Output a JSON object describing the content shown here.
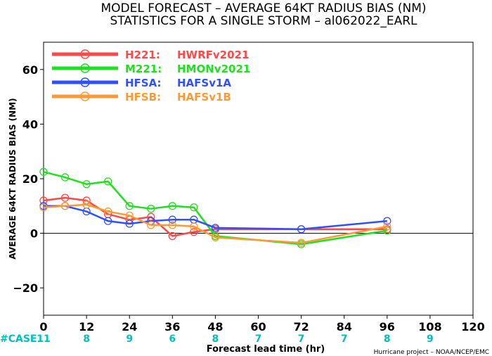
{
  "chart_data": {
    "type": "line",
    "title_line1": "MODEL FORECAST – AVERAGE 64KT RADIUS BIAS (NM)",
    "title_line2": "STATISTICS FOR A SINGLE STORM – al062022_EARL",
    "xlabel": "Forecast lead time (hr)",
    "ylabel": "AVERAGE 64KT RADIUS BIAS (NM)",
    "xlim": [
      0,
      120
    ],
    "ylim": [
      -30,
      70
    ],
    "xticks": [
      0,
      12,
      24,
      36,
      48,
      60,
      72,
      84,
      96,
      108,
      120
    ],
    "yticks": [
      -20,
      0,
      20,
      40,
      60
    ],
    "ytick_labels": [
      "−20",
      "0",
      "20",
      "40",
      "60"
    ],
    "legend_position": "top-left",
    "case_label": "#CASE",
    "case_x": [
      0,
      12,
      24,
      36,
      48,
      60,
      72,
      84,
      96,
      108
    ],
    "case_counts": [
      "11",
      "8",
      "9",
      "6",
      "8",
      "7",
      "7",
      "7",
      "8",
      "9"
    ],
    "credit": "Hurricane project – NOAA/NCEP/EMC",
    "series": [
      {
        "name": "H221:",
        "label": "HWRFv2021",
        "color": "#ff4848",
        "x": [
          0,
          6,
          12,
          18,
          24,
          30,
          36,
          42,
          48,
          72,
          96
        ],
        "y": [
          12,
          13,
          12,
          7,
          5,
          6,
          -1,
          0.5,
          1.5,
          1.5,
          1.5
        ]
      },
      {
        "name": "M221:",
        "label": "HMONv2021",
        "color": "#1ee01e",
        "x": [
          0,
          6,
          12,
          18,
          24,
          30,
          36,
          42,
          48,
          72,
          96
        ],
        "y": [
          22.5,
          20.5,
          18,
          19,
          10,
          9,
          10,
          9.5,
          -1,
          -4,
          1
        ]
      },
      {
        "name": "HFSA:",
        "label": "HAFSv1A",
        "color": "#3050ff",
        "x": [
          0,
          6,
          12,
          18,
          24,
          30,
          36,
          42,
          48,
          72,
          96
        ],
        "y": [
          10,
          10,
          8,
          4.5,
          3.5,
          4.5,
          5,
          5,
          2,
          1.5,
          4.5
        ]
      },
      {
        "name": "HFSB:",
        "label": "HAFSv1B",
        "color": "#ff9933",
        "x": [
          0,
          6,
          12,
          18,
          24,
          30,
          36,
          42,
          48,
          72,
          96
        ],
        "y": [
          9.5,
          10,
          10.5,
          8,
          6.5,
          3,
          3,
          2.5,
          -1.5,
          -3.5,
          2.5
        ]
      }
    ]
  }
}
